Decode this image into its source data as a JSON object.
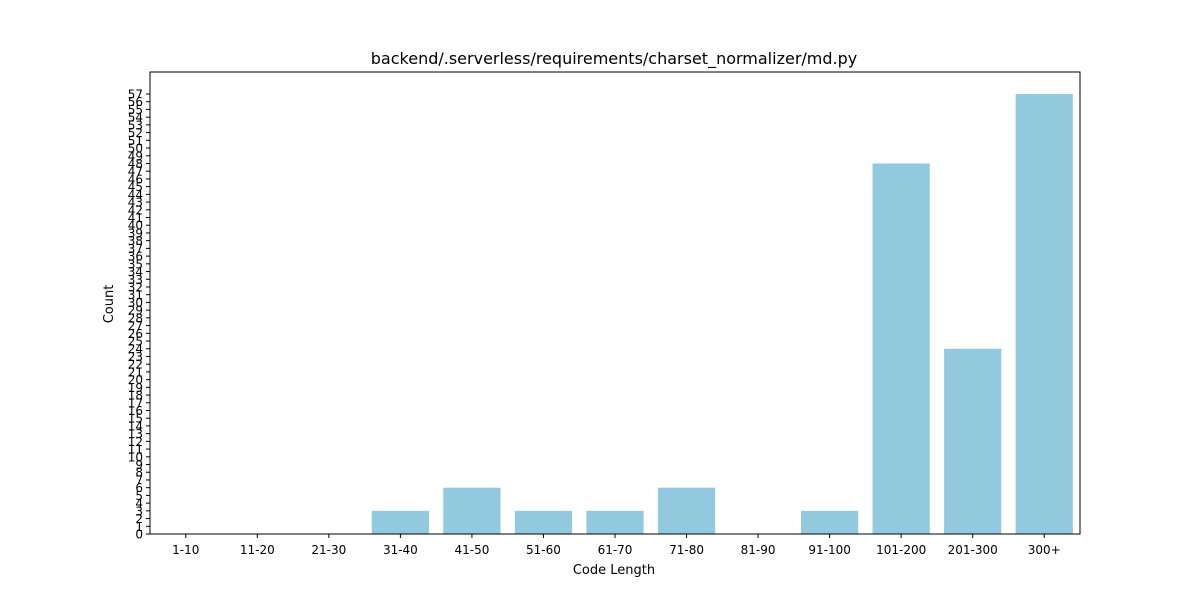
{
  "chart_data": {
    "type": "bar",
    "title": "backend/.serverless/requirements/charset_normalizer/md.py",
    "xlabel": "Code Length",
    "ylabel": "Count",
    "categories": [
      "1-10",
      "11-20",
      "21-30",
      "31-40",
      "41-50",
      "51-60",
      "61-70",
      "71-80",
      "81-90",
      "91-100",
      "101-200",
      "201-300",
      "300+"
    ],
    "values": [
      0,
      0,
      0,
      3,
      6,
      3,
      3,
      6,
      0,
      3,
      48,
      24,
      57
    ],
    "ylim": [
      0,
      59.85
    ],
    "yticks": [
      0,
      1,
      2,
      3,
      4,
      5,
      6,
      7,
      8,
      9,
      10,
      11,
      12,
      13,
      14,
      15,
      16,
      17,
      18,
      19,
      20,
      21,
      22,
      23,
      24,
      25,
      26,
      27,
      28,
      29,
      30,
      31,
      32,
      33,
      34,
      35,
      36,
      37,
      38,
      39,
      40,
      41,
      42,
      43,
      44,
      45,
      46,
      47,
      48,
      49,
      50,
      51,
      52,
      53,
      54,
      55,
      56,
      57
    ],
    "bar_color": "#92c9df",
    "grid": false,
    "legend": "none"
  }
}
